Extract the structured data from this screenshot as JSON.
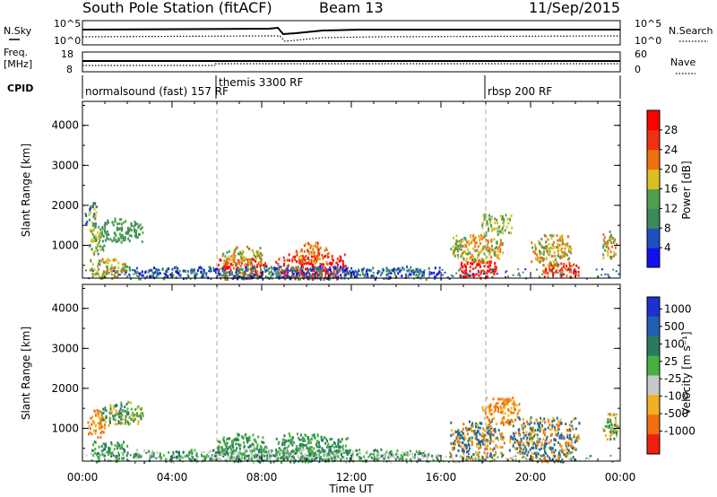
{
  "header": {
    "station": "South Pole Station (fitACF)",
    "beam": "Beam 13",
    "date": "11/Sep/2015"
  },
  "panels": {
    "nsky_label": "N.Sky",
    "nsky_ticks": [
      "10^5",
      "10^0"
    ],
    "nsearch_label": "N.Search",
    "nsearch_ticks": [
      "10^5",
      "10^0"
    ],
    "freq_label_1": "Freq.",
    "freq_label_2": "[MHz]",
    "freq_ticks": [
      "18",
      "8"
    ],
    "nave_label": "Nave",
    "nave_ticks": [
      "60",
      "0"
    ],
    "cpid_label": "CPID",
    "cpid_segments": [
      "normalsound (fast) 157 RF",
      "themis 3300 RF",
      "rbsp 200 RF"
    ]
  },
  "chart_data": [
    {
      "type": "heatmap",
      "name": "power-panel",
      "ylabel": "Slant Range [km]",
      "yticks": [
        "1000",
        "2000",
        "3000",
        "4000"
      ],
      "ylim": [
        180,
        4600
      ],
      "xlim": [
        0,
        24
      ],
      "colorbar_label": "Power [dB]",
      "colorbar_ticks": [
        "4",
        "8",
        "12",
        "16",
        "20",
        "24",
        "28"
      ],
      "colors": [
        "#1010f0",
        "#2050c0",
        "#3a8a5a",
        "#4ea050",
        "#d8c020",
        "#f07010",
        "#f03010",
        "#ff0000"
      ],
      "blobs": [
        {
          "t0": 0.2,
          "t1": 1.0,
          "r0": 800,
          "r1": 1500,
          "level": [
            2,
            3,
            4
          ]
        },
        {
          "t0": 0.8,
          "t1": 2.7,
          "r0": 1100,
          "r1": 1700,
          "level": [
            2,
            3
          ]
        },
        {
          "t0": 0.1,
          "t1": 0.7,
          "r0": 1500,
          "r1": 2100,
          "level": [
            1,
            2,
            4
          ]
        },
        {
          "t0": 0.3,
          "t1": 2.0,
          "r0": 180,
          "r1": 700,
          "level": [
            3,
            4,
            5
          ]
        },
        {
          "t0": 6.0,
          "t1": 8.2,
          "r0": 180,
          "r1": 700,
          "level": [
            5,
            6,
            7
          ]
        },
        {
          "t0": 6.2,
          "t1": 8.0,
          "r0": 500,
          "r1": 1000,
          "level": [
            3,
            4,
            5
          ]
        },
        {
          "t0": 8.6,
          "t1": 11.8,
          "r0": 180,
          "r1": 800,
          "level": [
            6,
            7
          ]
        },
        {
          "t0": 9.5,
          "t1": 11.0,
          "r0": 600,
          "r1": 1100,
          "level": [
            4,
            5,
            6
          ]
        },
        {
          "t0": 16.8,
          "t1": 18.5,
          "r0": 180,
          "r1": 700,
          "level": [
            6,
            7
          ]
        },
        {
          "t0": 16.4,
          "t1": 18.8,
          "r0": 600,
          "r1": 1300,
          "level": [
            3,
            4,
            5
          ]
        },
        {
          "t0": 17.8,
          "t1": 19.2,
          "r0": 1300,
          "r1": 1800,
          "level": [
            3,
            4
          ]
        },
        {
          "t0": 20.5,
          "t1": 22.2,
          "r0": 180,
          "r1": 600,
          "level": [
            5,
            6,
            7
          ]
        },
        {
          "t0": 20.0,
          "t1": 21.8,
          "r0": 500,
          "r1": 1300,
          "level": [
            3,
            4,
            5
          ]
        },
        {
          "t0": 23.2,
          "t1": 23.9,
          "r0": 700,
          "r1": 1400,
          "level": [
            3,
            4,
            5
          ]
        },
        {
          "t0": 2.0,
          "t1": 16.0,
          "r0": 180,
          "r1": 500,
          "level": [
            0,
            1,
            2,
            3
          ]
        }
      ]
    },
    {
      "type": "heatmap",
      "name": "velocity-panel",
      "ylabel": "Slant Range [km]",
      "yticks": [
        "1000",
        "2000",
        "3000",
        "4000"
      ],
      "ylim": [
        180,
        4600
      ],
      "xlim": [
        0,
        24
      ],
      "colorbar_label": "Velocity [m s⁻¹]",
      "colorbar_ticks": [
        "1000",
        "500",
        "100",
        "25",
        "-25",
        "-100",
        "-500",
        "-1000"
      ],
      "colors": [
        "#2030d0",
        "#2060b0",
        "#2a7a60",
        "#48b040",
        "#c8c8c8",
        "#f0b020",
        "#f07010",
        "#f02010"
      ],
      "blobs": [
        {
          "t0": 0.2,
          "t1": 1.0,
          "r0": 800,
          "r1": 1500,
          "level": [
            5,
            6
          ]
        },
        {
          "t0": 0.8,
          "t1": 2.7,
          "r0": 1100,
          "r1": 1700,
          "level": [
            2,
            3,
            5
          ]
        },
        {
          "t0": 0.3,
          "t1": 2.0,
          "r0": 180,
          "r1": 700,
          "level": [
            2,
            3
          ]
        },
        {
          "t0": 6.0,
          "t1": 8.2,
          "r0": 180,
          "r1": 900,
          "level": [
            2,
            3
          ]
        },
        {
          "t0": 8.6,
          "t1": 11.8,
          "r0": 180,
          "r1": 900,
          "level": [
            2,
            3
          ]
        },
        {
          "t0": 16.4,
          "t1": 18.8,
          "r0": 180,
          "r1": 1200,
          "level": [
            1,
            2,
            5,
            6
          ]
        },
        {
          "t0": 17.8,
          "t1": 19.5,
          "r0": 1100,
          "r1": 1800,
          "level": [
            5,
            6
          ]
        },
        {
          "t0": 19.0,
          "t1": 22.2,
          "r0": 180,
          "r1": 1300,
          "level": [
            1,
            2,
            5,
            6
          ]
        },
        {
          "t0": 23.2,
          "t1": 23.9,
          "r0": 700,
          "r1": 1400,
          "level": [
            2,
            3,
            5
          ]
        },
        {
          "t0": 2.0,
          "t1": 16.0,
          "r0": 180,
          "r1": 500,
          "level": [
            2,
            3,
            4
          ]
        }
      ]
    }
  ],
  "xaxis": {
    "ticks": [
      "00:00",
      "04:00",
      "08:00",
      "12:00",
      "16:00",
      "20:00",
      "00:00"
    ],
    "label": "Time UT"
  }
}
